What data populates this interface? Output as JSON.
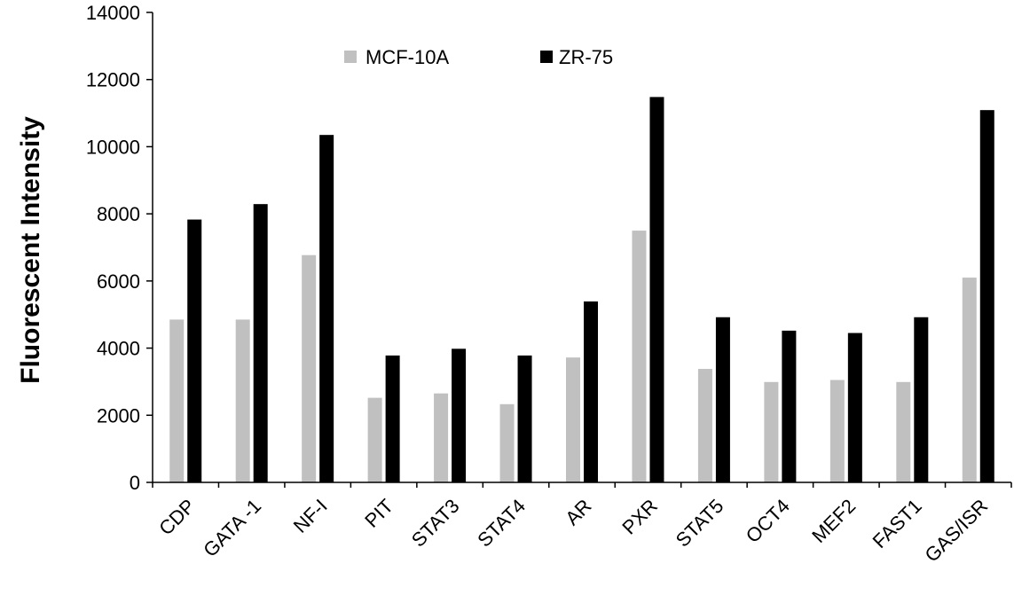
{
  "chart_data": {
    "type": "bar",
    "title": "",
    "xlabel": "",
    "ylabel": "Fluorescent Intensity",
    "ylim": [
      0,
      14000
    ],
    "yticks": [
      0,
      2000,
      4000,
      6000,
      8000,
      10000,
      12000,
      14000
    ],
    "grid": false,
    "legend_position": "top-center",
    "categories": [
      "CDP",
      "GATA -1",
      "NF-I",
      "PIT",
      "STAT3",
      "STAT4",
      "AR",
      "PXR",
      "STAT5",
      "OCT4",
      "MEF2",
      "FAST1",
      "GAS/ISR"
    ],
    "series": [
      {
        "name": "MCF-10A",
        "color": "#c0c0c0",
        "values": [
          4850,
          4850,
          6770,
          2520,
          2650,
          2330,
          3720,
          7500,
          3380,
          2990,
          3050,
          2990,
          6100
        ]
      },
      {
        "name": "ZR-75",
        "color": "#000000",
        "values": [
          7830,
          8290,
          10350,
          3780,
          3980,
          3780,
          5390,
          11480,
          4920,
          4520,
          4450,
          4920,
          11090
        ]
      }
    ]
  }
}
